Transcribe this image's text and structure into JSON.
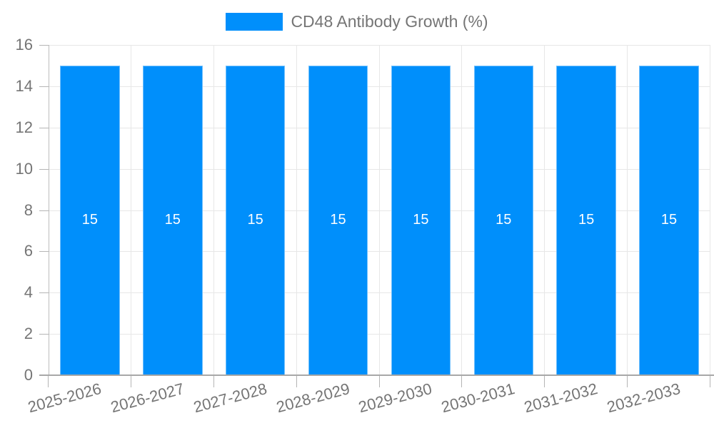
{
  "legend": {
    "label": "CD48 Antibody Growth (%)",
    "swatch_color": "#008FFB"
  },
  "chart_data": {
    "type": "bar",
    "title": "CD48 Antibody Growth (%)",
    "categories": [
      "2025-2026",
      "2026-2027",
      "2027-2028",
      "2028-2029",
      "2029-2030",
      "2030-2031",
      "2031-2032",
      "2032-2033"
    ],
    "values": [
      15,
      15,
      15,
      15,
      15,
      15,
      15,
      15
    ],
    "bar_labels": [
      "15",
      "15",
      "15",
      "15",
      "15",
      "15",
      "15",
      "15"
    ],
    "xlabel": "",
    "ylabel": "",
    "ylim": [
      0,
      16
    ],
    "ytick_step": 2,
    "ytick_labels": [
      "0",
      "2",
      "4",
      "6",
      "8",
      "10",
      "12",
      "14",
      "16"
    ],
    "grid": "on",
    "legend_position": "top-center",
    "bar_color": "#008FFB",
    "bar_label_color": "#FFFFFF",
    "axis_text_color": "#757575",
    "gridline_color": "#E7E7E7",
    "axis_line_color": "#A8A8A8"
  }
}
